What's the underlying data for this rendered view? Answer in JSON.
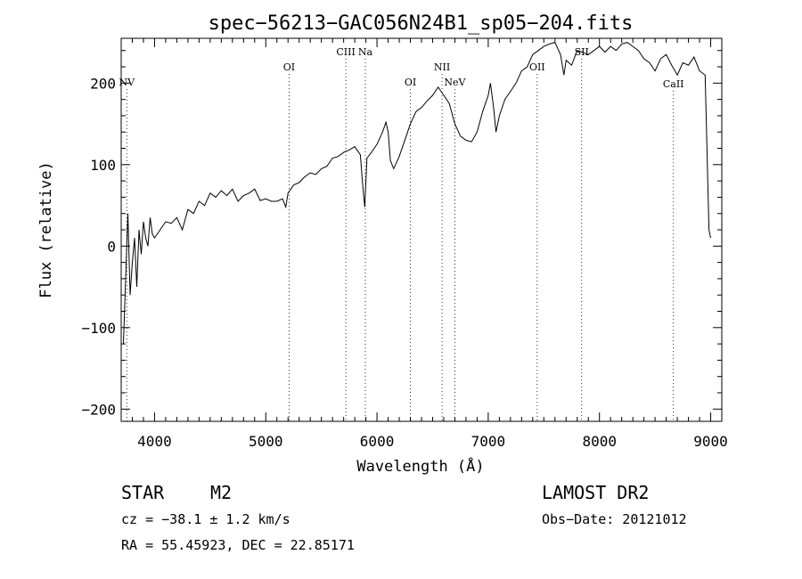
{
  "chart_data": {
    "type": "line",
    "title": "spec−56213−GAC056N24B1_sp05−204.fits",
    "xlabel": "Wavelength (Å)",
    "ylabel": "Flux (relative)",
    "xlim": [
      3700,
      9100
    ],
    "ylim": [
      -215,
      255
    ],
    "xticks": [
      4000,
      5000,
      6000,
      7000,
      8000,
      9000
    ],
    "yticks": [
      -200,
      -100,
      0,
      100,
      200
    ],
    "ytick_labels": [
      "−200",
      "−100",
      "0",
      "100",
      "200"
    ],
    "grid": false,
    "series": [
      {
        "x": [
          3720,
          3740,
          3760,
          3780,
          3800,
          3820,
          3840,
          3860,
          3880,
          3900,
          3920,
          3940,
          3960,
          3980,
          4000,
          4050,
          4100,
          4150,
          4200,
          4250,
          4300,
          4350,
          4400,
          4450,
          4500,
          4550,
          4600,
          4650,
          4700,
          4750,
          4800,
          4850,
          4900,
          4950,
          5000,
          5050,
          5100,
          5150,
          5180,
          5200,
          5250,
          5300,
          5350,
          5400,
          5450,
          5500,
          5550,
          5600,
          5650,
          5700,
          5750,
          5800,
          5850,
          5870,
          5890,
          5910,
          5950,
          6000,
          6050,
          6080,
          6100,
          6120,
          6150,
          6200,
          6250,
          6300,
          6350,
          6400,
          6450,
          6500,
          6550,
          6600,
          6650,
          6700,
          6750,
          6800,
          6850,
          6900,
          6950,
          7000,
          7020,
          7050,
          7070,
          7100,
          7150,
          7200,
          7250,
          7300,
          7350,
          7400,
          7450,
          7500,
          7550,
          7600,
          7650,
          7680,
          7700,
          7750,
          7800,
          7850,
          7900,
          7950,
          8000,
          8050,
          8100,
          8150,
          8200,
          8250,
          8300,
          8350,
          8400,
          8450,
          8500,
          8550,
          8600,
          8650,
          8700,
          8750,
          8800,
          8850,
          8900,
          8950,
          8970,
          8985,
          9000
        ],
        "y": [
          -120,
          -40,
          40,
          -60,
          -20,
          10,
          -50,
          20,
          -10,
          30,
          10,
          0,
          35,
          15,
          10,
          20,
          30,
          28,
          35,
          20,
          45,
          40,
          55,
          50,
          65,
          60,
          68,
          62,
          70,
          55,
          62,
          65,
          70,
          56,
          58,
          55,
          55,
          58,
          48,
          65,
          75,
          78,
          85,
          90,
          88,
          95,
          98,
          108,
          110,
          115,
          118,
          122,
          112,
          78,
          48,
          108,
          115,
          125,
          140,
          152,
          140,
          105,
          95,
          110,
          130,
          150,
          165,
          170,
          178,
          185,
          195,
          185,
          175,
          150,
          135,
          130,
          128,
          140,
          165,
          185,
          200,
          168,
          140,
          160,
          180,
          190,
          200,
          215,
          220,
          235,
          240,
          245,
          248,
          250,
          235,
          210,
          228,
          222,
          240,
          238,
          235,
          240,
          245,
          238,
          245,
          240,
          248,
          250,
          245,
          240,
          230,
          225,
          215,
          230,
          235,
          222,
          210,
          225,
          222,
          232,
          215,
          210,
          100,
          20,
          10
        ]
      }
    ],
    "line_labels": [
      {
        "label": "NV",
        "x": 3750,
        "row": 3
      },
      {
        "label": "OI",
        "x": 5210,
        "row": 2
      },
      {
        "label": "CIII",
        "x": 5720,
        "row": 1
      },
      {
        "label": "Na",
        "x": 5895,
        "row": 1
      },
      {
        "label": "OI",
        "x": 6300,
        "row": 3
      },
      {
        "label": "NII",
        "x": 6585,
        "row": 2
      },
      {
        "label": "NeV",
        "x": 6700,
        "row": 3
      },
      {
        "label": "OII",
        "x": 7440,
        "row": 2
      },
      {
        "label": "SII",
        "x": 7840,
        "row": 1
      },
      {
        "label": "CaII",
        "x": 8665,
        "row": 4
      }
    ]
  },
  "info": {
    "object_class": "STAR",
    "subclass": "M2",
    "survey": "LAMOST DR2",
    "redshift": "cz = −38.1 ± 1.2 km/s",
    "obs_date": "Obs−Date: 20121012",
    "coords": "RA =  55.45923, DEC =  22.85171"
  }
}
